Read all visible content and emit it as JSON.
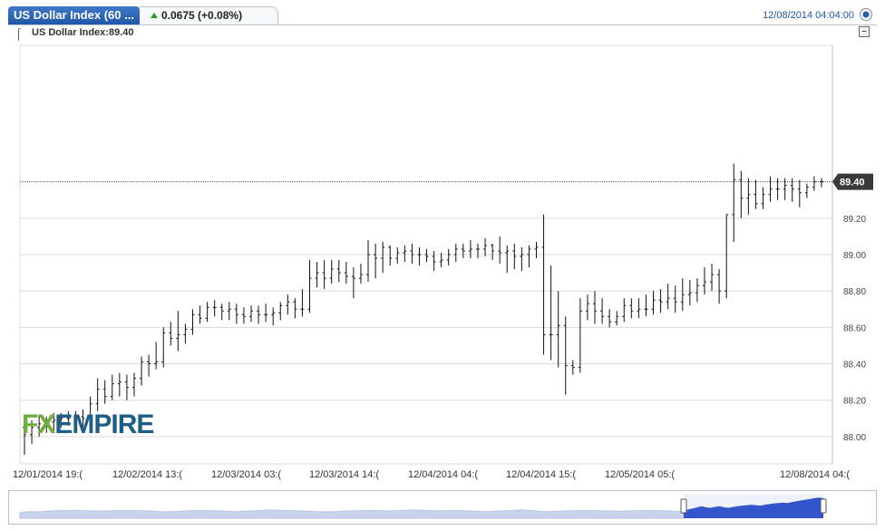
{
  "header": {
    "tab_title": "US Dollar Index (60 ...",
    "change_text": "0.0675 (+0.08%)",
    "datetime": "12/08/2014 04:04:00"
  },
  "legend": {
    "text": "US Dollar Index:89.40"
  },
  "brand": {
    "logo_text": "FXEMPIRE",
    "logo_color_fx": "#6fae3c",
    "logo_color_empire": "#1e5e86"
  },
  "colors": {
    "tab": "#2a66b8",
    "price_tag": "#3a3a3a",
    "navigator_fill": "#c9d3ee",
    "navigator_active": "#3355cc",
    "up_arrow": "#2a9a2a"
  },
  "chart_data": {
    "type": "ohlc",
    "ylim": [
      87.85,
      90.15
    ],
    "y_ticks": [
      88.0,
      88.2,
      88.4,
      88.6,
      88.8,
      89.0,
      89.2
    ],
    "y_tick_labels": [
      "88.00",
      "88.20",
      "88.40",
      "88.60",
      "88.80",
      "89.00",
      "89.20"
    ],
    "x_tick_labels": [
      "12/01/2014 19:(",
      "12/02/2014 13:(",
      "12/03/2014 03:(",
      "12/03/2014 14:(",
      "12/04/2014 04:(",
      "12/04/2014 15:(",
      "12/05/2014 05:(",
      "12/08/2014 04:("
    ],
    "last_price": 89.4,
    "last_price_label": "89.40",
    "grid": true,
    "bars": [
      [
        88.05,
        88.1,
        87.9,
        88.01
      ],
      [
        88.01,
        88.09,
        87.96,
        88.05
      ],
      [
        88.05,
        88.12,
        88.0,
        88.07
      ],
      [
        88.07,
        88.11,
        88.02,
        88.08
      ],
      [
        88.08,
        88.13,
        88.03,
        88.09
      ],
      [
        88.09,
        88.13,
        88.05,
        88.1
      ],
      [
        88.1,
        88.14,
        88.06,
        88.1
      ],
      [
        88.1,
        88.14,
        88.07,
        88.11
      ],
      [
        88.11,
        88.15,
        88.05,
        88.1
      ],
      [
        88.1,
        88.22,
        88.08,
        88.18
      ],
      [
        88.18,
        88.32,
        88.14,
        88.26
      ],
      [
        88.26,
        88.31,
        88.18,
        88.22
      ],
      [
        88.22,
        88.34,
        88.2,
        88.29
      ],
      [
        88.29,
        88.35,
        88.22,
        88.3
      ],
      [
        88.3,
        88.34,
        88.2,
        88.27
      ],
      [
        88.27,
        88.35,
        88.22,
        88.32
      ],
      [
        88.32,
        88.44,
        88.28,
        88.41
      ],
      [
        88.41,
        88.45,
        88.33,
        88.4
      ],
      [
        88.4,
        88.52,
        88.37,
        88.41
      ],
      [
        88.41,
        88.6,
        88.38,
        88.57
      ],
      [
        88.57,
        88.63,
        88.5,
        88.54
      ],
      [
        88.54,
        88.69,
        88.47,
        88.56
      ],
      [
        88.56,
        88.62,
        88.51,
        88.59
      ],
      [
        88.59,
        88.7,
        88.56,
        88.67
      ],
      [
        88.67,
        88.72,
        88.62,
        88.65
      ],
      [
        88.65,
        88.74,
        88.63,
        88.71
      ],
      [
        88.71,
        88.75,
        88.66,
        88.71
      ],
      [
        88.71,
        88.73,
        88.64,
        88.69
      ],
      [
        88.69,
        88.74,
        88.64,
        88.7
      ],
      [
        88.7,
        88.73,
        88.62,
        88.67
      ],
      [
        88.67,
        88.71,
        88.62,
        88.66
      ],
      [
        88.66,
        88.72,
        88.63,
        88.69
      ],
      [
        88.69,
        88.72,
        88.62,
        88.67
      ],
      [
        88.67,
        88.73,
        88.63,
        88.67
      ],
      [
        88.67,
        88.71,
        88.61,
        88.68
      ],
      [
        88.68,
        88.74,
        88.64,
        88.72
      ],
      [
        88.72,
        88.78,
        88.67,
        88.74
      ],
      [
        88.74,
        88.76,
        88.65,
        88.7
      ],
      [
        88.7,
        88.81,
        88.66,
        88.7
      ],
      [
        88.7,
        88.97,
        88.68,
        88.87
      ],
      [
        88.87,
        88.96,
        88.82,
        88.9
      ],
      [
        88.9,
        88.97,
        88.81,
        88.87
      ],
      [
        88.87,
        88.97,
        88.84,
        88.92
      ],
      [
        88.92,
        88.97,
        88.85,
        88.9
      ],
      [
        88.9,
        88.96,
        88.84,
        88.88
      ],
      [
        88.88,
        88.93,
        88.76,
        88.87
      ],
      [
        88.87,
        88.95,
        88.84,
        88.89
      ],
      [
        88.89,
        89.08,
        88.85,
        89.0
      ],
      [
        89.0,
        89.06,
        88.87,
        88.98
      ],
      [
        88.98,
        89.07,
        88.9,
        89.04
      ],
      [
        89.04,
        89.05,
        88.94,
        88.98
      ],
      [
        88.98,
        89.04,
        88.95,
        89.01
      ],
      [
        89.01,
        89.05,
        88.96,
        89.02
      ],
      [
        89.02,
        89.06,
        88.95,
        89.0
      ],
      [
        89.0,
        89.04,
        88.94,
        89.0
      ],
      [
        89.0,
        89.03,
        88.96,
        88.99
      ],
      [
        88.99,
        89.02,
        88.91,
        88.96
      ],
      [
        88.96,
        89.01,
        88.93,
        88.97
      ],
      [
        88.97,
        89.03,
        88.94,
        89.0
      ],
      [
        89.0,
        89.06,
        88.96,
        89.03
      ],
      [
        89.03,
        89.06,
        88.98,
        89.02
      ],
      [
        89.02,
        89.08,
        88.98,
        89.03
      ],
      [
        89.03,
        89.06,
        88.98,
        89.03
      ],
      [
        89.03,
        89.09,
        88.99,
        89.05
      ],
      [
        89.05,
        89.06,
        88.97,
        89.02
      ],
      [
        89.02,
        89.1,
        88.95,
        89.01
      ],
      [
        89.01,
        89.05,
        88.9,
        89.02
      ],
      [
        89.02,
        89.06,
        88.92,
        88.99
      ],
      [
        88.99,
        89.04,
        88.91,
        89.0
      ],
      [
        89.0,
        89.05,
        88.93,
        89.03
      ],
      [
        89.03,
        89.07,
        88.98,
        89.04
      ],
      [
        89.04,
        89.22,
        88.45,
        88.56
      ],
      [
        88.56,
        88.94,
        88.42,
        88.56
      ],
      [
        88.56,
        88.8,
        88.38,
        88.61
      ],
      [
        88.61,
        88.66,
        88.23,
        88.39
      ],
      [
        88.39,
        88.42,
        88.34,
        88.38
      ],
      [
        88.38,
        88.76,
        88.35,
        88.69
      ],
      [
        88.69,
        88.78,
        88.64,
        88.73
      ],
      [
        88.73,
        88.8,
        88.62,
        88.69
      ],
      [
        88.69,
        88.76,
        88.62,
        88.66
      ],
      [
        88.66,
        88.7,
        88.6,
        88.63
      ],
      [
        88.63,
        88.69,
        88.61,
        88.66
      ],
      [
        88.66,
        88.76,
        88.63,
        88.72
      ],
      [
        88.72,
        88.76,
        88.65,
        88.69
      ],
      [
        88.69,
        88.76,
        88.65,
        88.7
      ],
      [
        88.7,
        88.78,
        88.66,
        88.7
      ],
      [
        88.7,
        88.8,
        88.67,
        88.75
      ],
      [
        88.75,
        88.81,
        88.68,
        88.74
      ],
      [
        88.74,
        88.84,
        88.7,
        88.76
      ],
      [
        88.76,
        88.83,
        88.68,
        88.74
      ],
      [
        88.74,
        88.87,
        88.69,
        88.78
      ],
      [
        88.78,
        88.86,
        88.72,
        88.79
      ],
      [
        88.79,
        88.87,
        88.74,
        88.83
      ],
      [
        88.83,
        88.93,
        88.78,
        88.85
      ],
      [
        88.85,
        88.95,
        88.8,
        88.89
      ],
      [
        88.89,
        88.92,
        88.73,
        88.8
      ],
      [
        88.8,
        89.22,
        88.76,
        89.22
      ],
      [
        89.22,
        89.5,
        89.07,
        89.41
      ],
      [
        89.41,
        89.46,
        89.2,
        89.31
      ],
      [
        89.31,
        89.42,
        89.22,
        89.33
      ],
      [
        89.33,
        89.41,
        89.25,
        89.28
      ],
      [
        89.28,
        89.37,
        89.25,
        89.33
      ],
      [
        89.33,
        89.43,
        89.29,
        89.36
      ],
      [
        89.36,
        89.42,
        89.3,
        89.36
      ],
      [
        89.36,
        89.42,
        89.3,
        89.38
      ],
      [
        89.38,
        89.42,
        89.29,
        89.36
      ],
      [
        89.36,
        89.41,
        89.26,
        89.34
      ],
      [
        89.34,
        89.39,
        89.31,
        89.37
      ],
      [
        89.37,
        89.43,
        89.35,
        89.4
      ],
      [
        89.4,
        89.42,
        89.37,
        89.4
      ]
    ]
  },
  "navigator": {
    "series": [
      0.45,
      0.52,
      0.5,
      0.55,
      0.6,
      0.58,
      0.62,
      0.6,
      0.57,
      0.55,
      0.58,
      0.6,
      0.62,
      0.6,
      0.58,
      0.55,
      0.5,
      0.52,
      0.55,
      0.6,
      0.62,
      0.6,
      0.58,
      0.55,
      0.52,
      0.55,
      0.58,
      0.62,
      0.65,
      0.62,
      0.6,
      0.58,
      0.55,
      0.52,
      0.5,
      0.52,
      0.55,
      0.58,
      0.6,
      0.62,
      0.6,
      0.58,
      0.6,
      0.62,
      0.65,
      0.62,
      0.6,
      0.58,
      0.6,
      0.62,
      0.58,
      0.55,
      0.52,
      0.55,
      0.58,
      0.62,
      0.66,
      0.6,
      0.55,
      0.52,
      0.55,
      0.58,
      0.6,
      0.62,
      0.6,
      0.58,
      0.56,
      0.55,
      0.58,
      0.6,
      0.62,
      0.6,
      0.58,
      0.55,
      0.5
    ],
    "active": [
      0.35,
      0.4,
      0.45,
      0.5,
      0.55,
      0.5,
      0.48,
      0.52,
      0.55,
      0.5,
      0.48,
      0.52,
      0.55,
      0.58,
      0.6,
      0.62,
      0.6,
      0.58,
      0.62,
      0.65,
      0.68,
      0.7,
      0.72,
      0.7,
      0.74,
      0.78,
      0.82,
      0.85,
      0.88,
      0.92,
      0.95,
      0.92
    ]
  }
}
